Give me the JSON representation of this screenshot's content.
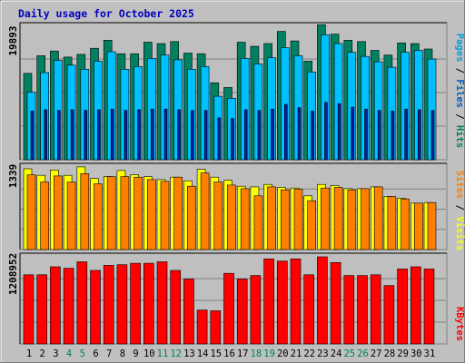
{
  "chart_data": {
    "title": "Daily usage for October 2025",
    "type": "bar",
    "days": [
      "1",
      "2",
      "3",
      "4",
      "5",
      "6",
      "7",
      "8",
      "9",
      "10",
      "11",
      "12",
      "13",
      "14",
      "15",
      "16",
      "17",
      "18",
      "19",
      "20",
      "21",
      "22",
      "23",
      "24",
      "25",
      "26",
      "27",
      "28",
      "29",
      "30",
      "31"
    ],
    "weekend_days": [
      "4",
      "5",
      "11",
      "12",
      "18",
      "19",
      "25",
      "26"
    ],
    "panels": [
      {
        "id": "hits",
        "max_label": "19893",
        "ymax": 19893,
        "legend": [
          "Pages",
          "Files",
          "Hits"
        ],
        "legend_colors": [
          "#00a0e0",
          "#0060c0",
          "#008060"
        ],
        "series": [
          {
            "name": "Hits",
            "color": "#008060",
            "values": [
              12800,
              15400,
              16100,
              15200,
              15600,
              16500,
              17700,
              15700,
              15700,
              17400,
              17200,
              17500,
              15800,
              15700,
              11400,
              10700,
              17400,
              16800,
              17200,
              19000,
              17600,
              14600,
              20000,
              18600,
              17700,
              17500,
              16200,
              15500,
              17300,
              17200,
              16400
            ]
          },
          {
            "name": "Files",
            "color": "#00c0ff",
            "values": [
              10000,
              12900,
              14700,
              14000,
              13400,
              14600,
              16000,
              13400,
              13800,
              15000,
              15500,
              14800,
              13400,
              13800,
              9400,
              9100,
              15000,
              14200,
              15100,
              16600,
              15400,
              13000,
              18500,
              17200,
              15900,
              15300,
              14500,
              13700,
              15900,
              16200,
              14900
            ]
          },
          {
            "name": "Pages",
            "color": "#0020a0",
            "values": [
              7200,
              7400,
              7300,
              7400,
              7300,
              7400,
              7500,
              7300,
              7400,
              7500,
              7500,
              7400,
              7300,
              7300,
              6200,
              6100,
              7400,
              7300,
              7500,
              8200,
              7700,
              7200,
              8500,
              8300,
              7800,
              7500,
              7300,
              7200,
              7500,
              7400,
              7300
            ]
          }
        ]
      },
      {
        "id": "visits",
        "max_label": "1339",
        "ymax": 1339,
        "legend": [
          "Sites",
          "Visits"
        ],
        "legend_colors": [
          "#ff8000",
          "#ffff00"
        ],
        "series": [
          {
            "name": "Visits",
            "color": "#ffff00",
            "values": [
              1339,
              1230,
              1320,
              1230,
              1370,
              1180,
              1210,
              1310,
              1240,
              1210,
              1160,
              1200,
              1140,
              1330,
              1200,
              1150,
              1050,
              1040,
              1080,
              1030,
              1020,
              890,
              1080,
              1060,
              1010,
              1010,
              1040,
              880,
              850,
              770,
              780
            ]
          },
          {
            "name": "Sites",
            "color": "#ff8000",
            "values": [
              1240,
              1120,
              1220,
              1120,
              1260,
              1090,
              1210,
              1210,
              1200,
              1160,
              1130,
              1200,
              1050,
              1270,
              1120,
              1070,
              1010,
              890,
              1040,
              990,
              1000,
              810,
              1020,
              1030,
              990,
              1010,
              1040,
              880,
              840,
              770,
              780
            ]
          }
        ]
      },
      {
        "id": "kbytes",
        "max_label": "1208952",
        "ymax": 1208952,
        "legend": [
          "KBytes"
        ],
        "legend_colors": [
          "#ff0000"
        ],
        "series": [
          {
            "name": "KBytes",
            "color": "#ff0000",
            "values": [
              960000,
              960000,
              1070000,
              1050000,
              1140000,
              1020000,
              1090000,
              1100000,
              1120000,
              1120000,
              1140000,
              1020000,
              900000,
              470000,
              460000,
              980000,
              900000,
              950000,
              1180000,
              1150000,
              1180000,
              960000,
              1209000,
              1130000,
              950000,
              950000,
              960000,
              810000,
              1040000,
              1070000,
              1040000
            ]
          }
        ]
      }
    ]
  }
}
